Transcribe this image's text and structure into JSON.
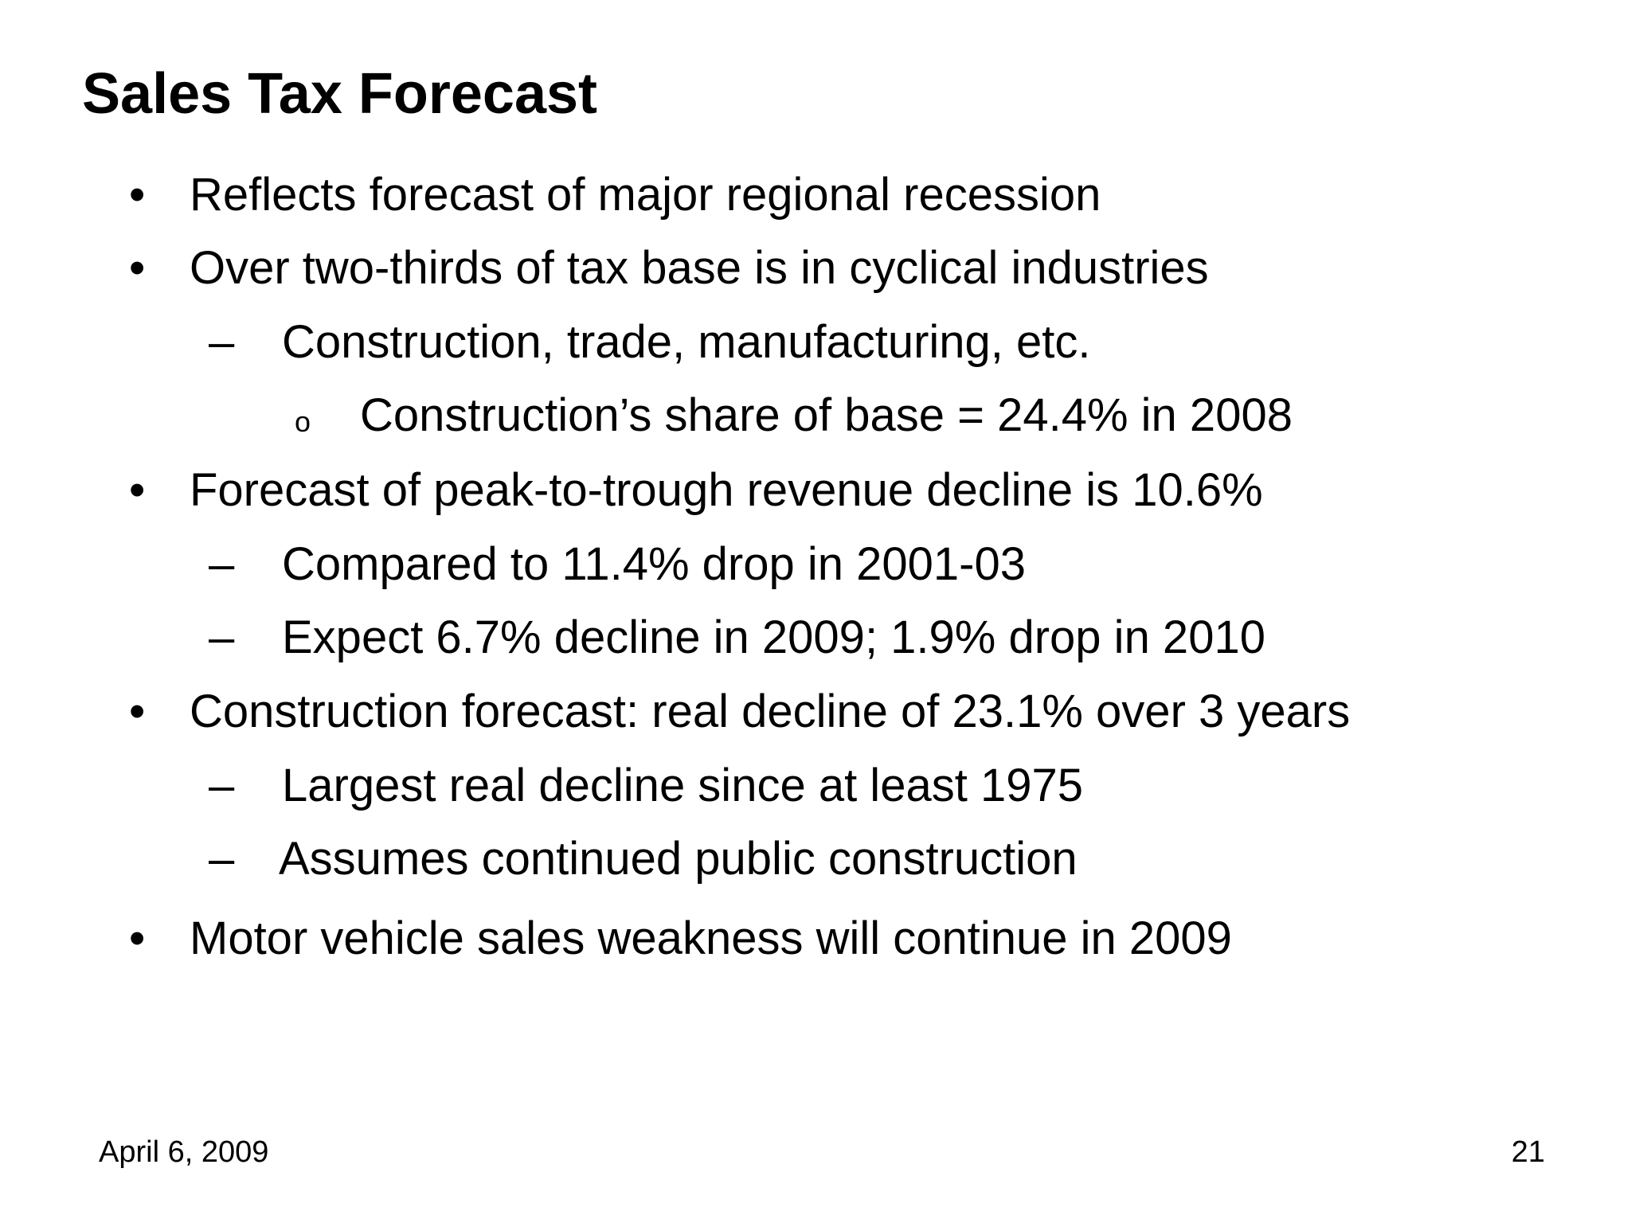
{
  "slide": {
    "title": "Sales Tax Forecast",
    "markers": {
      "level1": "•",
      "level2": "–",
      "level3": "o"
    },
    "items": [
      {
        "level": 1,
        "text": "Reflects forecast of major regional recession"
      },
      {
        "level": 1,
        "text": "Over two-thirds of tax base is in cyclical industries"
      },
      {
        "level": 2,
        "text": "Construction, trade, manufacturing, etc."
      },
      {
        "level": 3,
        "text": "Construction’s share of base = 24.4% in 2008"
      },
      {
        "level": 1,
        "text": "Forecast of peak-to-trough revenue decline is 10.6%"
      },
      {
        "level": 2,
        "text": "Compared to 11.4% drop in 2001-03"
      },
      {
        "level": 2,
        "text": "Expect 6.7% decline in 2009; 1.9% drop in 2010"
      },
      {
        "level": 1,
        "text": "Construction forecast: real decline of 23.1% over 3 years"
      },
      {
        "level": 2,
        "text": "Largest real decline since at least 1975"
      },
      {
        "level": 2,
        "text": "Assumes continued public construction"
      },
      {
        "level": 1,
        "text": "Motor vehicle sales weakness will continue in 2009"
      }
    ],
    "footer": {
      "date": "April 6, 2009",
      "page_number": "21"
    }
  }
}
